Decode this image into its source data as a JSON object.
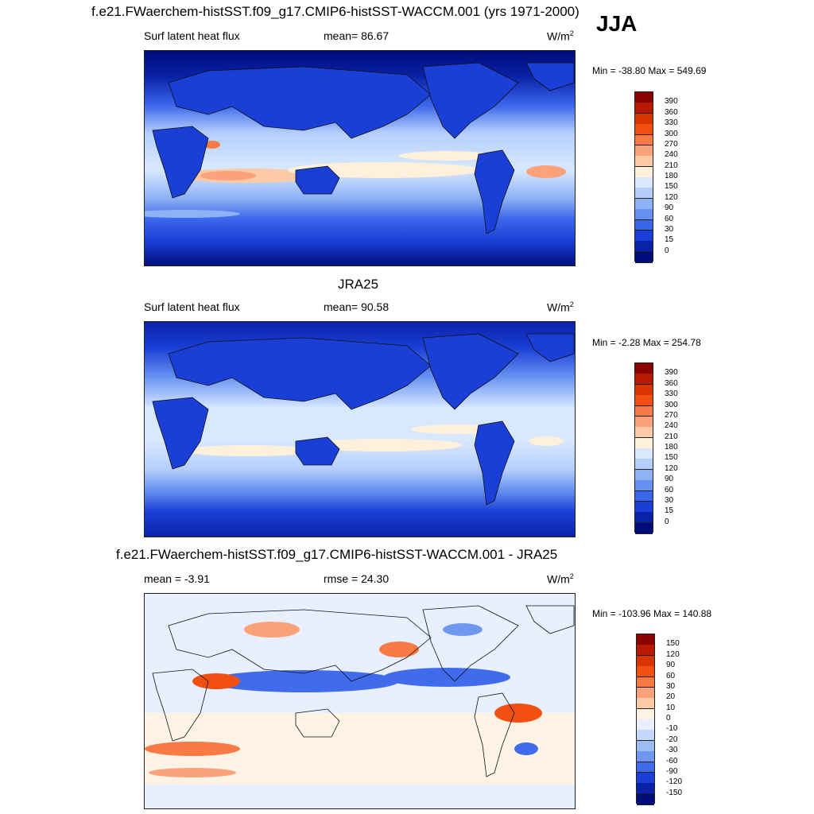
{
  "season": "JJA",
  "panels": [
    {
      "title": "f.e21.FWaerchem-histSST.f09_g17.CMIP6-histSST-WACCM.001 (yrs 1971-2000)",
      "left_label": "Surf latent heat flux",
      "center_label": "mean=  86.67",
      "units": "W/m",
      "units_sup": "2",
      "minmax": "Min = -38.80 Max = 549.69",
      "colorbar": {
        "labels": [
          "390",
          "360",
          "330",
          "300",
          "270",
          "240",
          "210",
          "180",
          "150",
          "120",
          "90",
          "60",
          "30",
          "15",
          "0"
        ],
        "colors": [
          "#8b0000",
          "#b81a00",
          "#d93500",
          "#f25010",
          "#fa7a45",
          "#fca27a",
          "#fdcaa8",
          "#fff0dc",
          "#d8e8ff",
          "#b5cffb",
          "#8fb2f5",
          "#6590f0",
          "#3a66ec",
          "#1a3fd6",
          "#0a22a8",
          "#000c7a"
        ]
      }
    },
    {
      "title": "JRA25",
      "left_label": "Surf latent heat flux",
      "center_label": "mean=  90.58",
      "units": "W/m",
      "units_sup": "2",
      "minmax": "Min =  -2.28 Max = 254.78",
      "colorbar": {
        "labels": [
          "390",
          "360",
          "330",
          "300",
          "270",
          "240",
          "210",
          "180",
          "150",
          "120",
          "90",
          "60",
          "30",
          "15",
          "0"
        ],
        "colors": [
          "#8b0000",
          "#b81a00",
          "#d93500",
          "#f25010",
          "#fa7a45",
          "#fca27a",
          "#fdcaa8",
          "#fff0dc",
          "#d8e8ff",
          "#b5cffb",
          "#8fb2f5",
          "#6590f0",
          "#3a66ec",
          "#1a3fd6",
          "#0a22a8",
          "#000c7a"
        ]
      }
    },
    {
      "title": "f.e21.FWaerchem-histSST.f09_g17.CMIP6-histSST-WACCM.001 - JRA25",
      "left_label": "mean =  -3.91",
      "center_label": "rmse =  24.30",
      "units": "W/m",
      "units_sup": "2",
      "minmax": "Min = -103.96 Max = 140.88",
      "colorbar": {
        "labels": [
          "150",
          "120",
          "90",
          "60",
          "30",
          "20",
          "10",
          "0",
          "-10",
          "-20",
          "-30",
          "-60",
          "-90",
          "-120",
          "-150"
        ],
        "colors": [
          "#8b0000",
          "#b81a00",
          "#d93500",
          "#f25010",
          "#fa7a45",
          "#fca27a",
          "#fdcaa8",
          "#fff3e6",
          "#e8f0ff",
          "#c5d8fb",
          "#9dbcf5",
          "#6f97f0",
          "#3f6bec",
          "#1a3fd6",
          "#0a22a8",
          "#000c7a"
        ]
      }
    }
  ]
}
